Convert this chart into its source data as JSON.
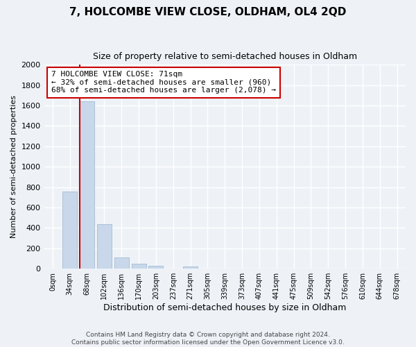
{
  "title": "7, HOLCOMBE VIEW CLOSE, OLDHAM, OL4 2QD",
  "subtitle": "Size of property relative to semi-detached houses in Oldham",
  "xlabel": "Distribution of semi-detached houses by size in Oldham",
  "ylabel": "Number of semi-detached properties",
  "bar_color": "#c8d8ea",
  "bar_edge_color": "#aac0d8",
  "marker_color": "#cc0000",
  "categories": [
    "0sqm",
    "34sqm",
    "68sqm",
    "102sqm",
    "136sqm",
    "170sqm",
    "203sqm",
    "237sqm",
    "271sqm",
    "305sqm",
    "339sqm",
    "373sqm",
    "407sqm",
    "441sqm",
    "475sqm",
    "509sqm",
    "542sqm",
    "576sqm",
    "610sqm",
    "644sqm",
    "678sqm"
  ],
  "values": [
    0,
    760,
    1640,
    435,
    110,
    52,
    30,
    0,
    25,
    0,
    0,
    0,
    0,
    0,
    0,
    0,
    0,
    0,
    0,
    0,
    0
  ],
  "ylim": [
    0,
    2000
  ],
  "yticks": [
    0,
    200,
    400,
    600,
    800,
    1000,
    1200,
    1400,
    1600,
    1800,
    2000
  ],
  "property_label": "7 HOLCOMBE VIEW CLOSE: 71sqm",
  "pct_smaller": 32,
  "n_smaller": 960,
  "pct_larger": 68,
  "n_larger": 2078,
  "annotation_box_color": "#ffffff",
  "annotation_box_edge_color": "#cc0000",
  "footer_line1": "Contains HM Land Registry data © Crown copyright and database right 2024.",
  "footer_line2": "Contains public sector information licensed under the Open Government Licence v3.0.",
  "background_color": "#eef2f7",
  "grid_color": "#ffffff",
  "fig_width": 6.0,
  "fig_height": 5.0,
  "dpi": 100
}
